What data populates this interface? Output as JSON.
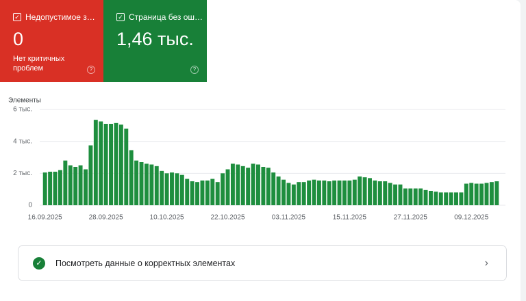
{
  "cards": [
    {
      "label": "Недопустимое з…",
      "value": "0",
      "description": "Нет критичных проблем",
      "color": "#d93025"
    },
    {
      "label": "Страница без ош…",
      "value": "1,46 тыс.",
      "color": "#188038"
    }
  ],
  "chart_data": {
    "type": "bar",
    "y_label": "Элементы",
    "color": "#1e8e3e",
    "grid": true,
    "ylim": [
      0,
      6000
    ],
    "yticks": [
      0,
      {
        "value": 2000,
        "label": "2 тыс."
      },
      {
        "value": 4000,
        "label": "4 тыс."
      },
      {
        "value": 6000,
        "label": "6 тыс."
      }
    ],
    "categories": [
      "16.09.2025",
      null,
      null,
      null,
      null,
      null,
      null,
      null,
      null,
      null,
      null,
      null,
      "28.09.2025",
      null,
      null,
      null,
      null,
      null,
      null,
      null,
      null,
      null,
      null,
      null,
      "10.10.2025",
      null,
      null,
      null,
      null,
      null,
      null,
      null,
      null,
      null,
      null,
      null,
      "22.10.2025",
      null,
      null,
      null,
      null,
      null,
      null,
      null,
      null,
      null,
      null,
      null,
      "03.11.2025",
      null,
      null,
      null,
      null,
      null,
      null,
      null,
      null,
      null,
      null,
      null,
      "15.11.2025",
      null,
      null,
      null,
      null,
      null,
      null,
      null,
      null,
      null,
      null,
      null,
      "27.11.2025",
      null,
      null,
      null,
      null,
      null,
      null,
      null,
      null,
      null,
      null,
      null,
      "09.12.2025",
      null,
      null,
      null,
      null,
      null
    ],
    "values": [
      2050,
      2100,
      2100,
      2200,
      2800,
      2500,
      2400,
      2500,
      2250,
      3750,
      5350,
      5250,
      5100,
      5100,
      5150,
      5050,
      4800,
      3450,
      2800,
      2700,
      2600,
      2550,
      2450,
      2150,
      2000,
      2050,
      2000,
      1900,
      1650,
      1500,
      1450,
      1550,
      1550,
      1650,
      1450,
      2000,
      2250,
      2600,
      2550,
      2450,
      2350,
      2600,
      2550,
      2400,
      2350,
      2050,
      1800,
      1600,
      1400,
      1300,
      1450,
      1450,
      1550,
      1600,
      1550,
      1550,
      1500,
      1550,
      1550,
      1550,
      1550,
      1600,
      1800,
      1750,
      1700,
      1550,
      1500,
      1500,
      1400,
      1300,
      1300,
      1050,
      1050,
      1050,
      1050,
      950,
      900,
      850,
      800,
      800,
      800,
      800,
      800,
      1350,
      1400,
      1350,
      1350,
      1400,
      1450,
      1500
    ]
  },
  "link": {
    "text": "Посмотреть данные о корректных элементах"
  }
}
